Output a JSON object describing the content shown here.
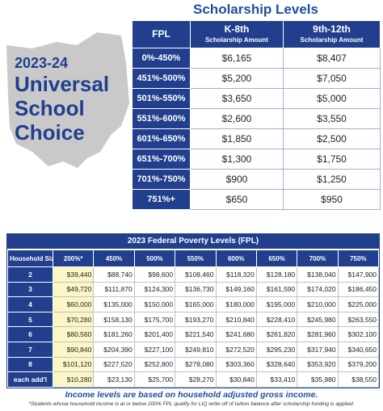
{
  "promo": {
    "year": "2023-24",
    "lines": [
      "Universal",
      "School",
      "Choice"
    ]
  },
  "scholarship": {
    "title": "Scholarship Levels",
    "header": [
      {
        "main": "FPL"
      },
      {
        "main": "K-8th",
        "sub": "Scholarship Amount"
      },
      {
        "main": "9th-12th",
        "sub": "Scholarship Amount"
      }
    ],
    "rows": [
      [
        "0%-450%",
        "$6,165",
        "$8,407"
      ],
      [
        "451%-500%",
        "$5,200",
        "$7,050"
      ],
      [
        "501%-550%",
        "$3,650",
        "$5,000"
      ],
      [
        "551%-600%",
        "$2,600",
        "$3,550"
      ],
      [
        "601%-650%",
        "$1,850",
        "$2,500"
      ],
      [
        "651%-700%",
        "$1,300",
        "$1,750"
      ],
      [
        "701%-750%",
        "$900",
        "$1,250"
      ],
      [
        "751%+",
        "$650",
        "$950"
      ]
    ]
  },
  "fpl": {
    "title": "2023 Federal Poverty Levels (FPL)",
    "header": [
      "Household Size",
      "200%*",
      "450%",
      "500%",
      "550%",
      "600%",
      "650%",
      "700%",
      "750%"
    ],
    "rows": [
      [
        "2",
        "$39,440",
        "$88,740",
        "$98,600",
        "$108,460",
        "$118,320",
        "$128,180",
        "$138,040",
        "$147,900"
      ],
      [
        "3",
        "$49,720",
        "$111,870",
        "$124,300",
        "$136,730",
        "$149,160",
        "$161,590",
        "$174,020",
        "$186,450"
      ],
      [
        "4",
        "$60,000",
        "$135,000",
        "$150,000",
        "$165,000",
        "$180,000",
        "$195,000",
        "$210,000",
        "$225,000"
      ],
      [
        "5",
        "$70,280",
        "$158,130",
        "$175,700",
        "$193,270",
        "$210,840",
        "$228,410",
        "$245,980",
        "$263,550"
      ],
      [
        "6",
        "$80,560",
        "$181,260",
        "$201,400",
        "$221,540",
        "$241,680",
        "$261,820",
        "$281,960",
        "$302,100"
      ],
      [
        "7",
        "$90,840",
        "$204,390",
        "$227,100",
        "$249,810",
        "$272,520",
        "$295,230",
        "$317,940",
        "$340,650"
      ],
      [
        "8",
        "$101,120",
        "$227,520",
        "$252,800",
        "$278,080",
        "$303,360",
        "$328,640",
        "$353,920",
        "$379,200"
      ],
      [
        "each add'l",
        "$10,280",
        "$23,130",
        "$25,700",
        "$28,270",
        "$30,840",
        "$33,410",
        "$35,980",
        "$38,550"
      ]
    ]
  },
  "footer": {
    "note": "Income levels are based on household adjusted gross income.",
    "footnote": "*Students whose household income is at or below 200% FPL qualify for LIQ write-off of tuition balance after scholarship funding is applied."
  }
}
